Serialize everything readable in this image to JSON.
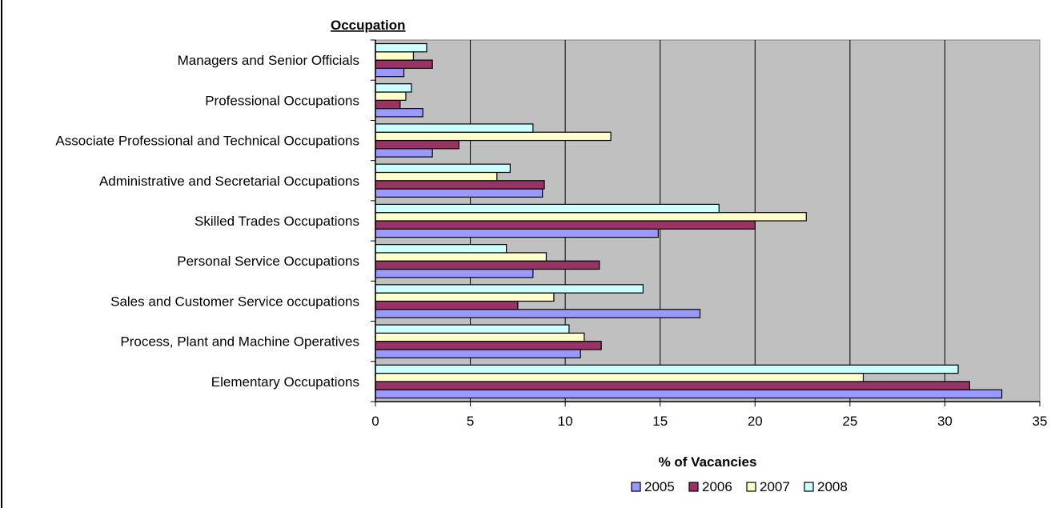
{
  "chart_data": {
    "type": "bar",
    "orientation": "horizontal",
    "title": "",
    "category_axis_label": "Occupation",
    "xlabel": "% of Vacancies",
    "xlim": [
      0,
      35
    ],
    "xticks": [
      0,
      5,
      10,
      15,
      20,
      25,
      30,
      35
    ],
    "grid": true,
    "legend_position": "bottom",
    "categories": [
      "Managers and Senior Officials",
      "Professional Occupations",
      "Associate Professional and Technical Occupations",
      "Administrative and Secretarial Occupations",
      "Skilled Trades Occupations",
      "Personal Service Occupations",
      "Sales and Customer Service occupations",
      "Process, Plant and Machine Operatives",
      "Elementary Occupations"
    ],
    "series": [
      {
        "name": "2005",
        "color": "#9999ff",
        "values": [
          1.5,
          2.5,
          3.0,
          8.8,
          14.9,
          8.3,
          17.1,
          10.8,
          33.0
        ]
      },
      {
        "name": "2006",
        "color": "#993366",
        "values": [
          3.0,
          1.3,
          4.4,
          8.9,
          20.0,
          11.8,
          7.5,
          11.9,
          31.3
        ]
      },
      {
        "name": "2007",
        "color": "#ffffcc",
        "values": [
          2.0,
          1.6,
          12.4,
          6.4,
          22.7,
          9.0,
          9.4,
          11.0,
          25.7
        ]
      },
      {
        "name": "2008",
        "color": "#ccffff",
        "values": [
          2.7,
          1.9,
          8.3,
          7.1,
          18.1,
          6.9,
          14.1,
          10.2,
          30.7
        ]
      }
    ]
  }
}
